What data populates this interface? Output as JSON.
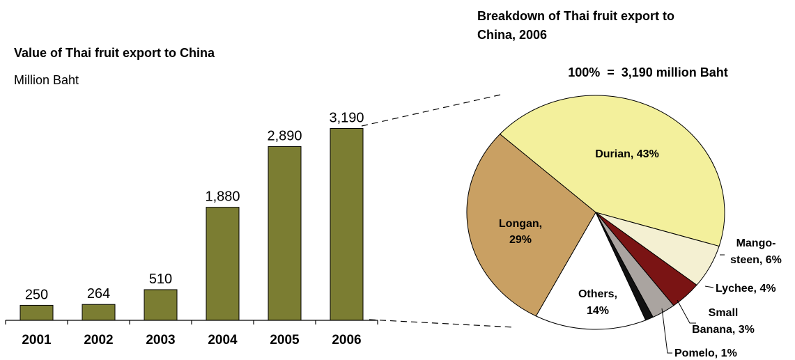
{
  "chart_data": [
    {
      "type": "bar",
      "title": "Value of Thai fruit export to China",
      "subtitle": "Million Baht",
      "categories": [
        "2001",
        "2002",
        "2003",
        "2004",
        "2005",
        "2006"
      ],
      "values": [
        250,
        264,
        510,
        1880,
        2890,
        3190
      ],
      "value_labels": [
        "250",
        "264",
        "510",
        "1,880",
        "2,890",
        "3,190"
      ],
      "ylim": [
        0,
        3300
      ],
      "grid": false,
      "bar_color": "#7b7d32"
    },
    {
      "type": "pie",
      "title": "Breakdown of Thai fruit export to China, 2006",
      "total_label": "100%  =  3,190 million Baht",
      "slices": [
        {
          "label": "Durian, 43%",
          "value": 43,
          "color": "#f3f09c",
          "label_position": "inside"
        },
        {
          "label": "Mango-steen, 6%",
          "value": 6,
          "color": "#f4f0d2",
          "label_position": "outside"
        },
        {
          "label": "Lychee, 4%",
          "value": 4,
          "color": "#7a1414",
          "label_position": "outside"
        },
        {
          "label": "Small Banana, 3%",
          "value": 3,
          "color": "#aaa4a0",
          "label_position": "outside"
        },
        {
          "label": "Pomelo, 1%",
          "value": 1,
          "color": "#111111",
          "label_position": "outside"
        },
        {
          "label": "Others, 14%",
          "value": 14,
          "color": "#ffffff",
          "label_position": "inside"
        },
        {
          "label": "Longan, 29%",
          "value": 29,
          "color": "#c9a063",
          "label_position": "inside"
        }
      ]
    }
  ],
  "labels": {
    "bar_title": "Value of Thai fruit export to China",
    "bar_subtitle": "Million Baht",
    "pie_title_line1": "Breakdown of Thai fruit export to",
    "pie_title_line2": "China, 2006",
    "pie_total": "100%  =  3,190 million Baht",
    "durian": "Durian, 43%",
    "longan_line1": "Longan,",
    "longan_line2": "29%",
    "others_line1": "Others,",
    "others_line2": "14%",
    "mango_line1": "Mango-",
    "mango_line2": "steen, 6%",
    "lychee": "Lychee, 4%",
    "banana_line1": "Small",
    "banana_line2": "Banana, 3%",
    "pomelo": "Pomelo, 1%"
  }
}
